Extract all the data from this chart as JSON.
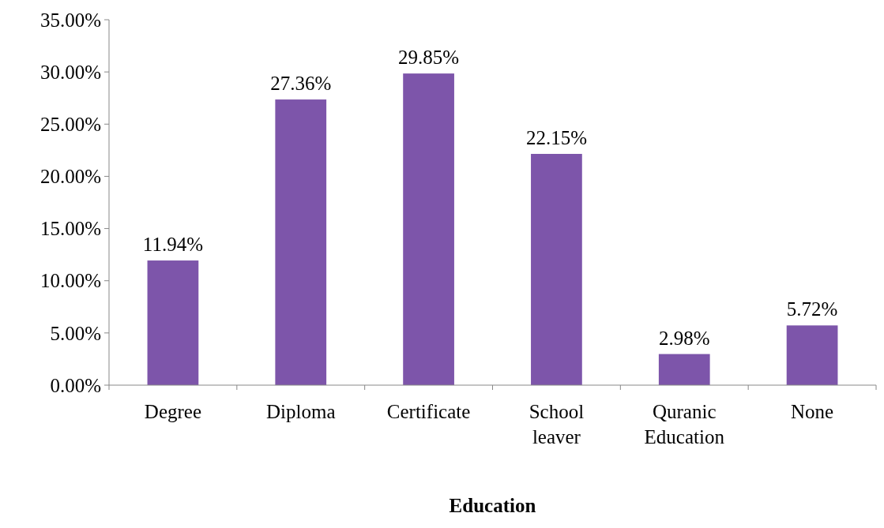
{
  "chart_data": {
    "type": "bar",
    "xlabel": "Education",
    "categories": [
      "Degree",
      "Diploma",
      "Certificate",
      "School leaver",
      "Quranic Education",
      "None"
    ],
    "values": [
      11.94,
      27.36,
      29.85,
      22.15,
      2.98,
      5.72
    ],
    "value_labels": [
      "11.94%",
      "27.36%",
      "29.85%",
      "22.15%",
      "2.98%",
      "5.72%"
    ],
    "color": "#7d55aa",
    "ylim": [
      0,
      35
    ],
    "yticks": [
      {
        "value": 0,
        "label": "0.00%"
      },
      {
        "value": 5,
        "label": "5.00%"
      },
      {
        "value": 10,
        "label": "10.00%"
      },
      {
        "value": 15,
        "label": "15.00%"
      },
      {
        "value": 20,
        "label": "20.00%"
      },
      {
        "value": 25,
        "label": "25.00%"
      },
      {
        "value": 30,
        "label": "30.00%"
      },
      {
        "value": 35,
        "label": "35.00%"
      }
    ],
    "grid": false
  }
}
